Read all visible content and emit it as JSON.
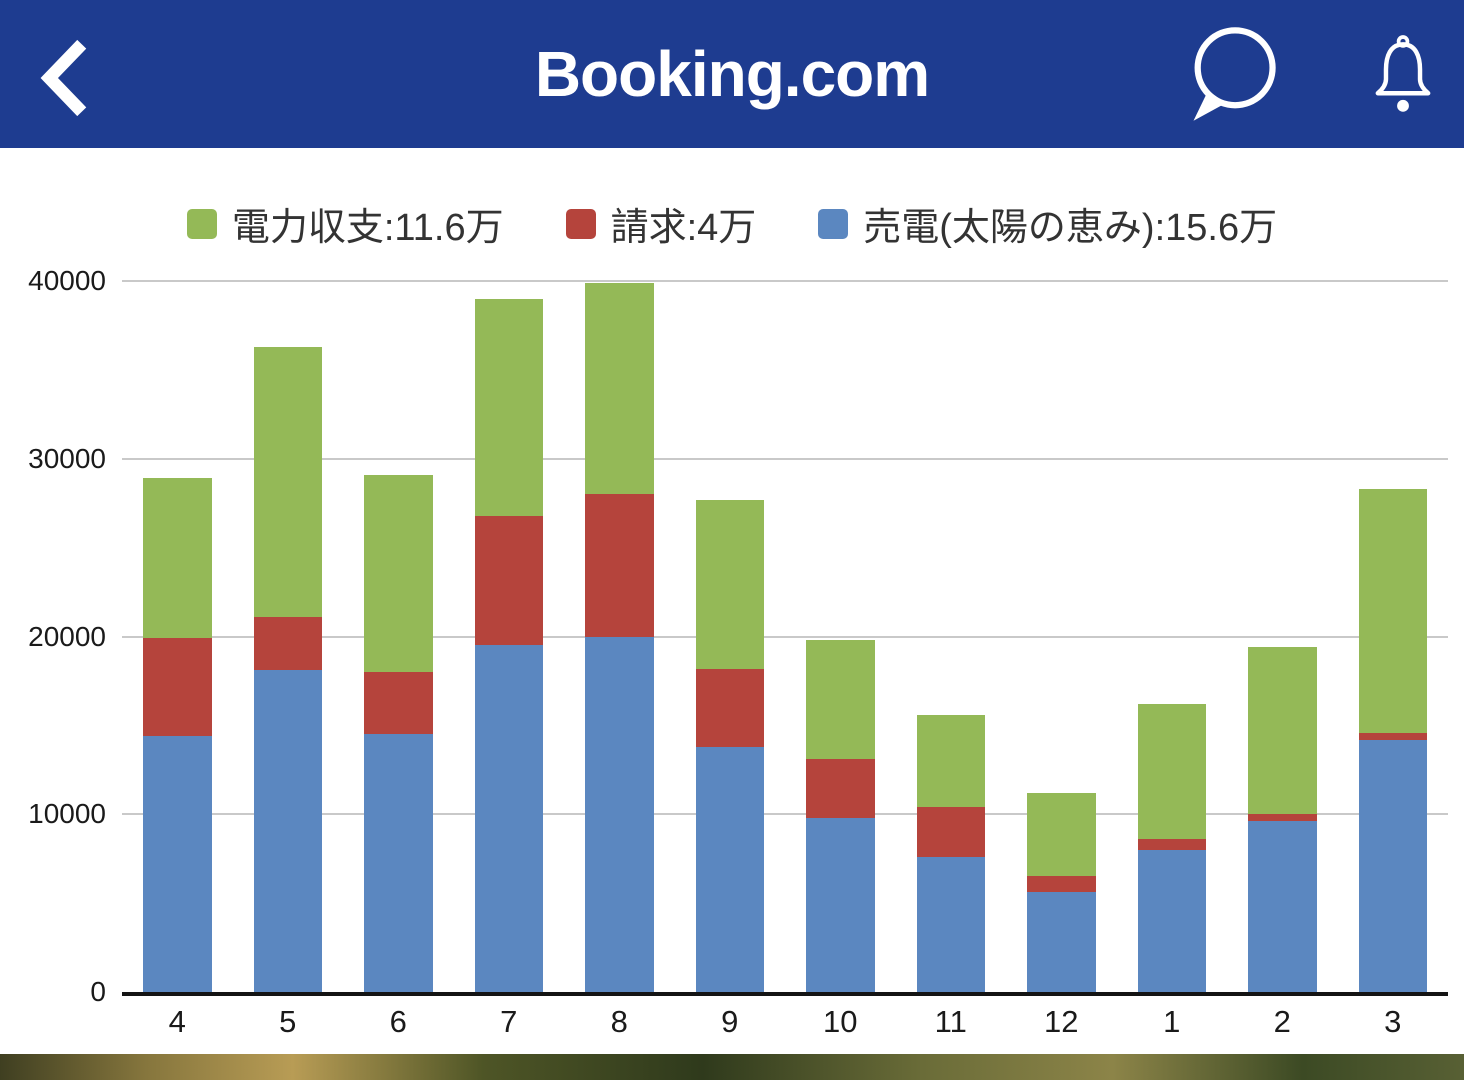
{
  "header": {
    "title": "Booking.com",
    "icons": [
      "back-chevron-icon",
      "chat-bubble-icon",
      "bell-icon"
    ]
  },
  "colors": {
    "header_bg": "#1e3c90",
    "grid_line": "#c9c9c9",
    "axis_line": "#141414",
    "bar_blue": "#5b87c0",
    "bar_red": "#b5443c",
    "bar_green": "#94b957"
  },
  "chart_data": {
    "type": "bar",
    "stacked": true,
    "title": "",
    "xlabel": "",
    "ylabel": "",
    "categories": [
      "4",
      "5",
      "6",
      "7",
      "8",
      "9",
      "10",
      "11",
      "12",
      "1",
      "2",
      "3"
    ],
    "series": [
      {
        "key": "sell",
        "name": "売電(太陽の恵み):15.6万",
        "color": "#5b87c0",
        "values": [
          14400,
          18100,
          14500,
          19500,
          20000,
          13800,
          9800,
          7600,
          5600,
          8000,
          9600,
          14200
        ]
      },
      {
        "key": "bill",
        "name": "請求:4万",
        "color": "#b5443c",
        "values": [
          5500,
          3000,
          3500,
          7300,
          8000,
          4400,
          3300,
          2800,
          900,
          600,
          400,
          400
        ]
      },
      {
        "key": "balance",
        "name": "電力収支:11.6万",
        "color": "#94b957",
        "values": [
          9000,
          15200,
          11100,
          12200,
          11900,
          9500,
          6700,
          5200,
          4700,
          7600,
          9400,
          13700
        ]
      }
    ],
    "legend": [
      {
        "label": "電力収支:11.6万",
        "color": "#94b957"
      },
      {
        "label": "請求:4万",
        "color": "#b5443c"
      },
      {
        "label": "売電(太陽の恵み):15.6万",
        "color": "#5b87c0"
      }
    ],
    "legend_position": "top",
    "grid": "horizontal",
    "ylim": [
      0,
      40000
    ],
    "yticks": [
      0,
      10000,
      20000,
      30000,
      40000
    ]
  }
}
